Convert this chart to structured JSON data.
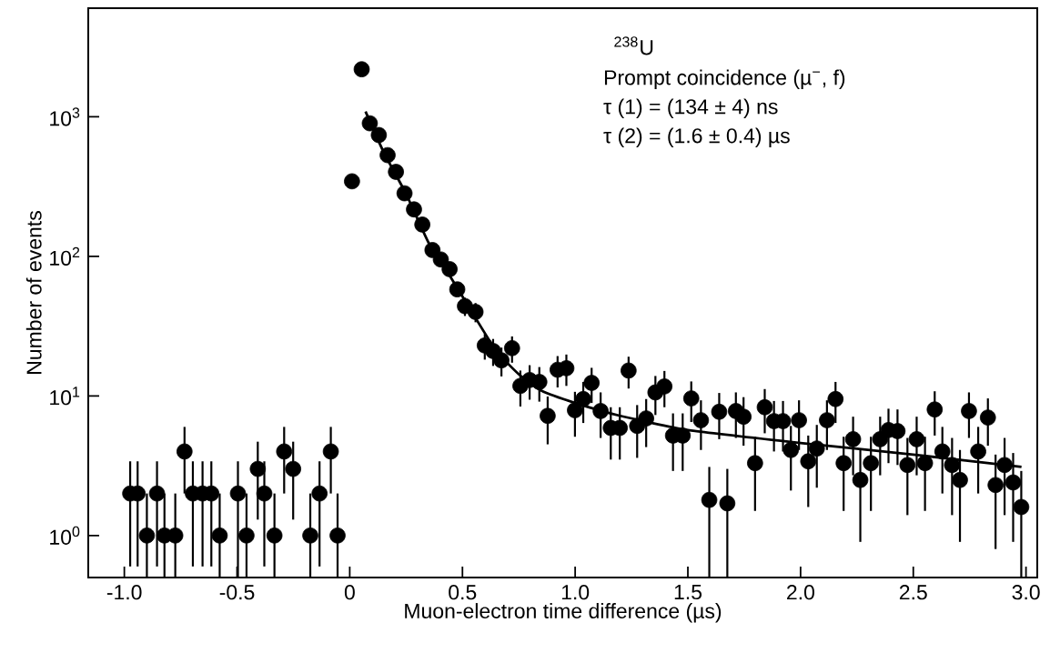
{
  "chart_data": {
    "type": "scatter",
    "xlabel": "Muon-electron time difference (µs)",
    "ylabel": "Number of events",
    "annotations": [
      "$^{238}$U",
      "Prompt coincidence (µ$^{−}$, f)",
      "τ (1) = (134 ± 4) ns",
      "τ (2) = (1.6 ± 0.4) µs"
    ],
    "log": "y",
    "grid": false,
    "xlim": [
      -1.16,
      3.05
    ],
    "ylim": [
      0.5,
      6000
    ],
    "xticks": [
      {
        "value": -1,
        "label": "-1.0"
      },
      {
        "value": -0.5,
        "label": "-0.5"
      },
      {
        "value": 0,
        "label": "0"
      },
      {
        "value": 0.5,
        "label": "0.5"
      },
      {
        "value": 1,
        "label": "1.0"
      },
      {
        "value": 1.5,
        "label": "1.5"
      },
      {
        "value": 2,
        "label": "2.0"
      },
      {
        "value": 2.5,
        "label": "2.5"
      },
      {
        "value": 3,
        "label": "3.0"
      }
    ],
    "yticks": [
      {
        "value": 1,
        "label": "10$^{0}$"
      },
      {
        "value": 10,
        "label": "10$^{1}$"
      },
      {
        "value": 100,
        "label": "10$^{2}$"
      },
      {
        "value": 1000,
        "label": "10$^{3}$"
      }
    ],
    "series": [
      {
        "color": "#000000",
        "marker": "circle",
        "x": [
          -0.974,
          -0.941,
          -0.9,
          -0.855,
          -0.822,
          -0.774,
          -0.733,
          -0.696,
          -0.653,
          -0.614,
          -0.577,
          -0.496,
          -0.458,
          -0.408,
          -0.379,
          -0.334,
          -0.291,
          -0.251,
          -0.175,
          -0.134,
          -0.084,
          -0.054,
          0.01,
          0.053,
          0.089,
          0.129,
          0.168,
          0.205,
          0.243,
          0.285,
          0.322,
          0.367,
          0.404,
          0.443,
          0.477,
          0.511,
          0.558,
          0.599,
          0.636,
          0.673,
          0.72,
          0.757,
          0.798,
          0.841,
          0.878,
          0.922,
          0.961,
          0.999,
          1.036,
          1.073,
          1.113,
          1.158,
          1.198,
          1.237,
          1.275,
          1.315,
          1.356,
          1.396,
          1.434,
          1.477,
          1.515,
          1.558,
          1.595,
          1.639,
          1.675,
          1.713,
          1.747,
          1.798,
          1.841,
          1.882,
          1.922,
          1.957,
          1.993,
          2.034,
          2.072,
          2.117,
          2.155,
          2.191,
          2.233,
          2.265,
          2.312,
          2.353,
          2.39,
          2.43,
          2.474,
          2.515,
          2.552,
          2.595,
          2.629,
          2.672,
          2.707,
          2.747,
          2.788,
          2.831,
          2.865,
          2.905,
          2.943,
          2.979
        ],
        "values": [
          2,
          2,
          1,
          2,
          1,
          1,
          4,
          2,
          2,
          2,
          1,
          2,
          1,
          3,
          2,
          1,
          4,
          3,
          1,
          2,
          4,
          1,
          345,
          2190,
          898,
          740,
          531,
          403,
          283,
          217,
          169,
          111,
          95,
          81,
          58,
          44,
          40,
          23,
          21,
          18,
          22,
          11.8,
          13,
          12.6,
          7.2,
          15.4,
          15.8,
          7.9,
          9.5,
          12.4,
          7.8,
          5.9,
          5.9,
          15.2,
          6.1,
          6.9,
          10.6,
          11.7,
          5.2,
          5.2,
          9.6,
          6.7,
          1.8,
          7.7,
          1.7,
          7.8,
          7.1,
          3.3,
          8.3,
          6.6,
          6.6,
          4.1,
          6.7,
          3.4,
          4.2,
          6.7,
          9.5,
          3.3,
          4.9,
          2.5,
          3.3,
          4.9,
          5.7,
          5.6,
          3.2,
          4.9,
          3.3,
          8.0,
          4.0,
          3.2,
          2.5,
          7.8,
          4.0,
          7.0,
          2.3,
          3.2,
          2.4,
          1.6
        ],
        "errors": [
          1.4,
          1.4,
          [
            0.5,
            2
          ],
          1.4,
          [
            0.5,
            2
          ],
          [
            0.5,
            2
          ],
          2,
          1.4,
          1.4,
          1.4,
          [
            0.5,
            2
          ],
          [
            0.5,
            3.4
          ],
          [
            0.5,
            2
          ],
          1.7,
          1.4,
          [
            0.5,
            2
          ],
          2,
          1.7,
          [
            0.5,
            2
          ],
          1.4,
          2,
          [
            0.5,
            2
          ],
          null,
          null,
          null,
          null,
          null,
          null,
          null,
          null,
          null,
          null,
          null,
          null,
          null,
          6.6,
          6.3,
          4.8,
          4.6,
          4.2,
          4.7,
          3.4,
          3.6,
          3.5,
          2.7,
          3.9,
          4.0,
          2.8,
          3.1,
          3.5,
          2.8,
          2.4,
          2.4,
          3.9,
          2.5,
          2.6,
          3.3,
          3.4,
          2.3,
          2.3,
          3.1,
          2.6,
          [
            0.5,
            3.1
          ],
          2.8,
          [
            0.5,
            3.0
          ],
          2.8,
          2.7,
          1.8,
          2.9,
          2.6,
          2.6,
          2.0,
          2.6,
          1.8,
          2.0,
          2.6,
          3.1,
          1.8,
          2.2,
          1.6,
          1.8,
          2.2,
          2.4,
          2.4,
          1.8,
          2.2,
          1.8,
          2.8,
          2.0,
          1.8,
          1.6,
          2.8,
          2.0,
          2.6,
          1.5,
          1.8,
          1.5,
          [
            0.5,
            2.9
          ]
        ]
      },
      {
        "type": "line",
        "color": "#000000",
        "line_style": "solid",
        "marker": "none",
        "x": [
          0.07,
          0.15,
          0.25,
          0.35,
          0.45,
          0.55,
          0.65,
          0.75,
          0.85,
          1.0,
          1.2,
          1.5,
          2.0,
          2.5,
          2.98
        ],
        "values": [
          1090,
          560,
          280,
          125,
          70,
          38,
          21,
          14.3,
          10.9,
          8.9,
          7.2,
          5.7,
          4.6,
          3.8,
          3.1
        ]
      }
    ]
  }
}
